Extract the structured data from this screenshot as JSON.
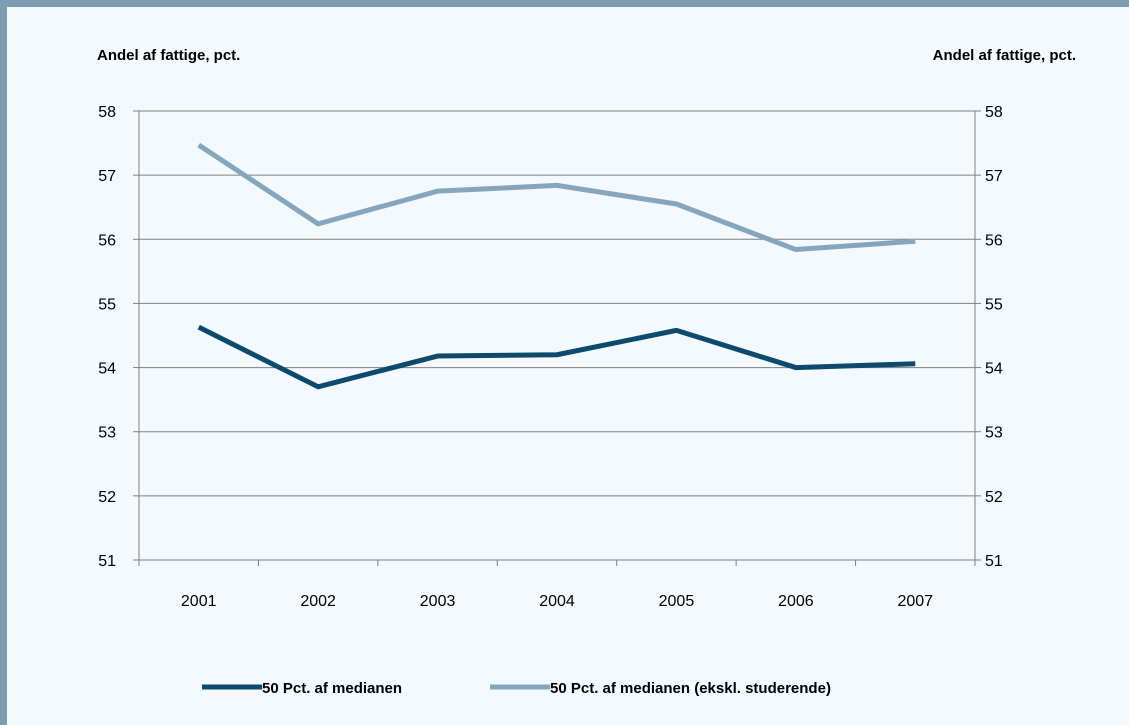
{
  "chart_data": {
    "type": "line",
    "title": "",
    "ylabel_left": "Andel af fattige, pct.",
    "ylabel_right": "Andel af fattige, pct.",
    "x": [
      "2001",
      "2002",
      "2003",
      "2004",
      "2005",
      "2006",
      "2007"
    ],
    "ylim": [
      51,
      58
    ],
    "yticks": [
      51,
      52,
      53,
      54,
      55,
      56,
      57,
      58
    ],
    "grid": true,
    "legend_position": "bottom",
    "series": [
      {
        "name": "50 Pct. af medianen",
        "color": "#0d4a6e",
        "values": [
          54.63,
          53.7,
          54.18,
          54.2,
          54.58,
          54.0,
          54.06
        ]
      },
      {
        "name": "50 Pct. af medianen (ekskl. studerende)",
        "color": "#86a6bd",
        "values": [
          57.47,
          56.24,
          56.75,
          56.84,
          56.55,
          55.84,
          55.97
        ]
      }
    ]
  }
}
